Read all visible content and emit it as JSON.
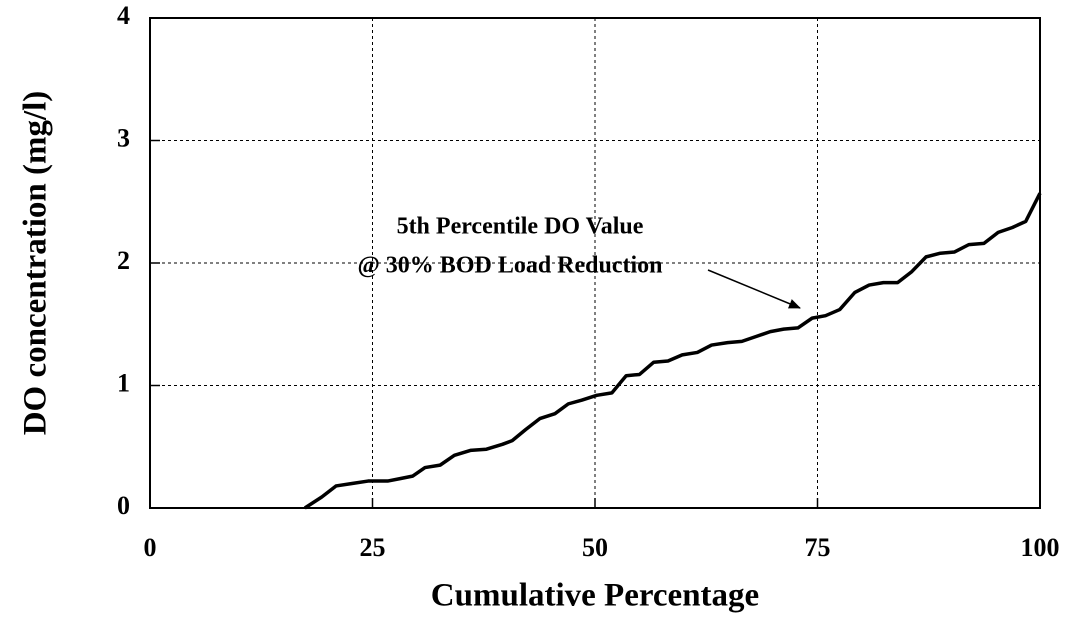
{
  "chart_data": {
    "type": "line",
    "xlabel": "Cumulative Percentage",
    "ylabel": "DO concentration (mg/l)",
    "annotations": [
      "5th Percentile DO Value",
      "@ 30% BOD Load Reduction"
    ],
    "x": [
      17.4,
      19.3,
      20.9,
      22.7,
      24.5,
      26.7,
      28.1,
      29.5,
      30.9,
      32.6,
      34.2,
      36,
      37.8,
      39.6,
      40.7,
      42.2,
      43.8,
      45.5,
      47,
      48.5,
      50.2,
      51.9,
      53.5,
      55,
      56.6,
      58.2,
      59.8,
      61.5,
      63.1,
      64.9,
      66.5,
      68.1,
      69.7,
      71.2,
      72.8,
      74.4,
      75.9,
      77.5,
      79.2,
      80.8,
      82.4,
      84,
      85.6,
      87.2,
      88.8,
      90.4,
      92,
      93.7,
      95.3,
      96.9,
      98.4,
      100
    ],
    "values": [
      0,
      0.09,
      0.18,
      0.2,
      0.22,
      0.22,
      0.24,
      0.26,
      0.33,
      0.35,
      0.43,
      0.47,
      0.48,
      0.52,
      0.55,
      0.64,
      0.73,
      0.77,
      0.85,
      0.88,
      0.92,
      0.94,
      1.08,
      1.09,
      1.19,
      1.2,
      1.25,
      1.27,
      1.33,
      1.35,
      1.36,
      1.4,
      1.44,
      1.46,
      1.47,
      1.55,
      1.57,
      1.62,
      1.76,
      1.82,
      1.84,
      1.84,
      1.93,
      2.05,
      2.08,
      2.09,
      2.15,
      2.16,
      2.25,
      2.29,
      2.34,
      2.57
    ],
    "color": "#000000",
    "xlim": [
      0,
      100
    ],
    "xticks": [
      0,
      25,
      50,
      75,
      100
    ],
    "ylim": [
      0,
      4
    ],
    "yticks": [
      0,
      1,
      2,
      3,
      4
    ],
    "grid": true
  }
}
